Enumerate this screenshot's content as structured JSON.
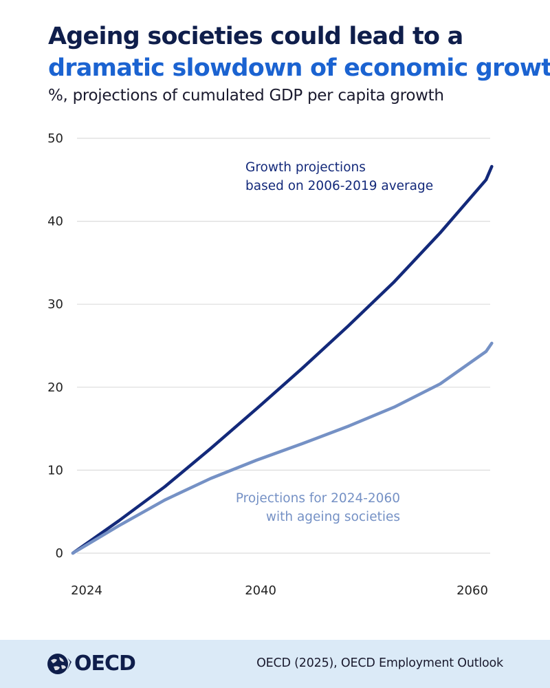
{
  "header": {
    "title_line1": "Ageing societies could lead to a",
    "title_line2": "dramatic slowdown of economic growth",
    "subtitle": "%, projections of cumulated GDP per capita growth"
  },
  "colors": {
    "background": "#ffffff",
    "title_dark": "#0f1e4b",
    "title_accent": "#1b63d1",
    "series_dark": "#13297a",
    "series_light": "#7591c5",
    "grid": "#dcdcdc",
    "axis_text": "#222222",
    "footer_bg": "#dbeaf7",
    "footer_text": "#1a1a2e"
  },
  "chart_data": {
    "type": "line",
    "title": "Ageing societies could lead to a dramatic slowdown of economic growth",
    "subtitle": "%, projections of cumulated GDP per capita growth",
    "xlabel": "",
    "ylabel": "",
    "xlim": [
      2024,
      2060
    ],
    "ylim": [
      0,
      50
    ],
    "x_ticks": [
      "2024",
      "2040",
      "2060"
    ],
    "y_ticks": [
      "0",
      "10",
      "20",
      "30",
      "40",
      "50"
    ],
    "grid": true,
    "series": [
      {
        "name": "Growth projections based on 2006-2019 average",
        "label_lines": [
          "Growth projections",
          "based on 2006-2019 average"
        ],
        "color": "#13297a",
        "points": [
          [
            2024,
            0
          ],
          [
            2028,
            3.9
          ],
          [
            2032,
            8.0
          ],
          [
            2036,
            12.6
          ],
          [
            2040,
            17.4
          ],
          [
            2044,
            22.3
          ],
          [
            2048,
            27.4
          ],
          [
            2052,
            32.7
          ],
          [
            2056,
            38.6
          ],
          [
            2060,
            45.0
          ],
          [
            2060.5,
            46.6
          ]
        ]
      },
      {
        "name": "Projections for 2024-2060 with ageing societies",
        "label_lines": [
          "Projections for 2024-2060",
          "with ageing societies"
        ],
        "color": "#7591c5",
        "points": [
          [
            2024,
            0
          ],
          [
            2028,
            3.3
          ],
          [
            2032,
            6.4
          ],
          [
            2036,
            9.0
          ],
          [
            2040,
            11.2
          ],
          [
            2044,
            13.2
          ],
          [
            2048,
            15.3
          ],
          [
            2052,
            17.6
          ],
          [
            2056,
            20.4
          ],
          [
            2060,
            24.3
          ],
          [
            2060.5,
            25.3
          ]
        ]
      }
    ]
  },
  "footer": {
    "logo_text": "OECD",
    "source": "OECD (2025), OECD Employment Outlook"
  }
}
